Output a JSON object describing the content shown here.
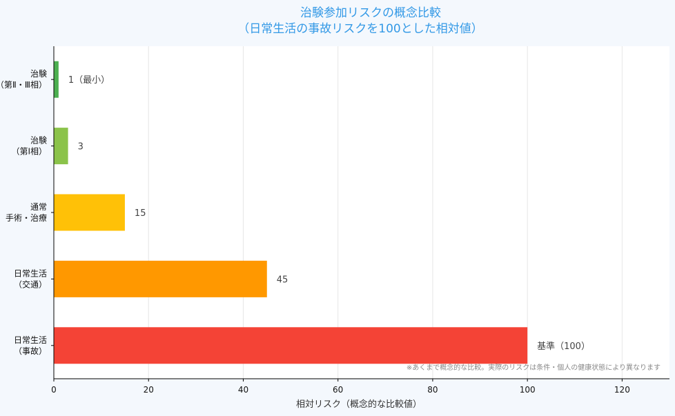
{
  "chart_data": {
    "type": "bar",
    "orientation": "horizontal",
    "title": "治験参加リスクの概念比較",
    "subtitle": "（日常生活の事故リスクを100とした相対値）",
    "xlabel": "相対リスク（概念的な比較値）",
    "ylabel": "",
    "xlim": [
      0,
      130
    ],
    "xticks": [
      0,
      20,
      40,
      60,
      80,
      100,
      120
    ],
    "grid": true,
    "categories": [
      "治験\n（第Ⅱ・Ⅲ相）",
      "治験\n（第Ⅰ相）",
      "通常\n手術・治療",
      "日常生活\n（交通）",
      "日常生活\n（事故）"
    ],
    "values": [
      1,
      3,
      15,
      45,
      100
    ],
    "bar_labels": [
      "1（最小）",
      "3",
      "15",
      "45",
      "基準（100）"
    ],
    "colors": [
      "#4caf50",
      "#8bc34a",
      "#ffc107",
      "#ff9800",
      "#f44336"
    ],
    "footnote": "※あくまで概念的な比較。実際のリスクは条件・個人の健康状態により異なります"
  }
}
